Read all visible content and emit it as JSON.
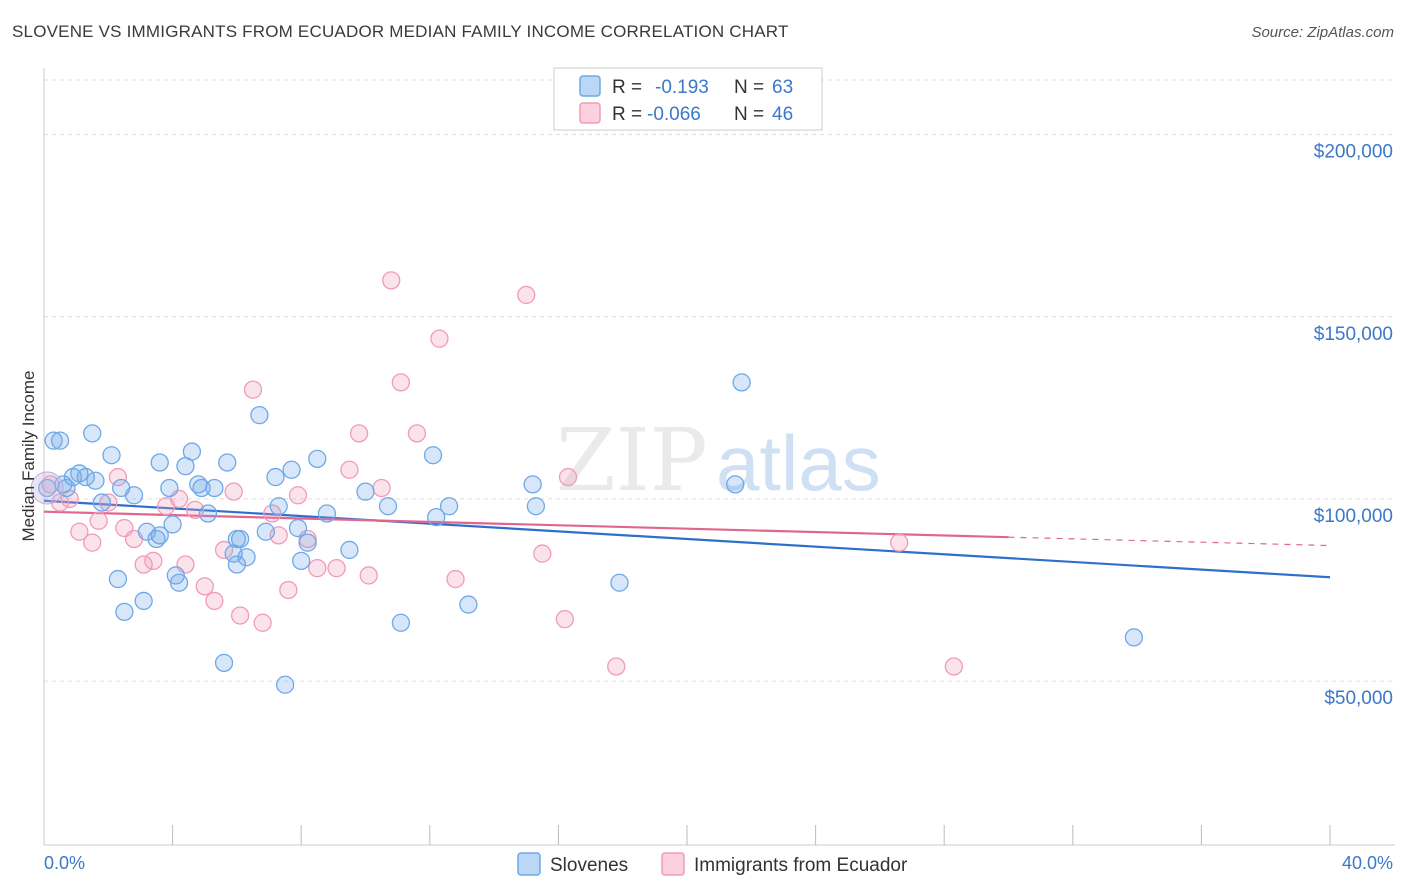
{
  "title": "SLOVENE VS IMMIGRANTS FROM ECUADOR MEDIAN FAMILY INCOME CORRELATION CHART",
  "source": "Source: ZipAtlas.com",
  "colors": {
    "blue": "#6fa8e8",
    "blue_line": "#2f6fcc",
    "pink": "#f19bb8",
    "pink_line": "#e0668f",
    "axis_text": "#3b78c9",
    "grid": "#dddddd"
  },
  "legend": {
    "rows": [
      {
        "r_label": "R =",
        "r_value": "-0.193",
        "n_label": "N =",
        "n_value": "63"
      },
      {
        "r_label": "R =",
        "r_value": "-0.066",
        "n_label": "N =",
        "n_value": "46"
      }
    ]
  },
  "watermark": {
    "zip": "ZIP",
    "atlas": "atlas"
  },
  "chart_data": {
    "type": "scatter",
    "title": "SLOVENE VS IMMIGRANTS FROM ECUADOR MEDIAN FAMILY INCOME CORRELATION CHART",
    "ylabel": "Median Family Income",
    "xlabel": "",
    "xlim": [
      0,
      40
    ],
    "ylim": [
      5000,
      215000
    ],
    "x_tick_labels": [
      "0.0%",
      "40.0%"
    ],
    "y_ticks": [
      50000,
      100000,
      150000,
      200000
    ],
    "y_tick_labels": [
      "$50,000",
      "$100,000",
      "$150,000",
      "$200,000"
    ],
    "grid": true,
    "series": [
      {
        "name": "Slovenes",
        "color": "#6fa8e8",
        "trend": {
          "x": [
            0,
            40
          ],
          "y": [
            99500,
            78500
          ]
        },
        "points": [
          [
            0.1,
            103000
          ],
          [
            0.3,
            116000
          ],
          [
            0.5,
            116000
          ],
          [
            0.6,
            104000
          ],
          [
            0.7,
            103000
          ],
          [
            0.9,
            106000
          ],
          [
            1.1,
            107000
          ],
          [
            1.3,
            106000
          ],
          [
            1.5,
            118000
          ],
          [
            1.8,
            99000
          ],
          [
            2.1,
            112000
          ],
          [
            2.4,
            103000
          ],
          [
            2.8,
            101000
          ],
          [
            3.2,
            91000
          ],
          [
            3.5,
            89000
          ],
          [
            3.6,
            90000
          ],
          [
            3.6,
            110000
          ],
          [
            3.9,
            103000
          ],
          [
            4.0,
            93000
          ],
          [
            4.1,
            79000
          ],
          [
            4.2,
            77000
          ],
          [
            4.4,
            109000
          ],
          [
            4.6,
            113000
          ],
          [
            4.8,
            104000
          ],
          [
            4.9,
            103000
          ],
          [
            5.1,
            96000
          ],
          [
            5.3,
            103000
          ],
          [
            5.6,
            55000
          ],
          [
            5.7,
            110000
          ],
          [
            5.9,
            85000
          ],
          [
            6.0,
            89000
          ],
          [
            6.1,
            89000
          ],
          [
            6.3,
            84000
          ],
          [
            6.7,
            123000
          ],
          [
            6.9,
            91000
          ],
          [
            7.2,
            106000
          ],
          [
            7.3,
            98000
          ],
          [
            7.5,
            49000
          ],
          [
            7.7,
            108000
          ],
          [
            7.9,
            92000
          ],
          [
            8.0,
            83000
          ],
          [
            8.2,
            88000
          ],
          [
            8.5,
            111000
          ],
          [
            8.8,
            96000
          ],
          [
            9.5,
            86000
          ],
          [
            10.0,
            102000
          ],
          [
            10.7,
            98000
          ],
          [
            11.1,
            66000
          ],
          [
            12.1,
            112000
          ],
          [
            12.2,
            95000
          ],
          [
            12.6,
            98000
          ],
          [
            13.2,
            71000
          ],
          [
            15.2,
            104000
          ],
          [
            15.3,
            98000
          ],
          [
            17.9,
            77000
          ],
          [
            21.7,
            132000
          ],
          [
            21.5,
            104000
          ],
          [
            33.9,
            62000
          ],
          [
            2.3,
            78000
          ],
          [
            2.5,
            69000
          ],
          [
            3.1,
            72000
          ],
          [
            1.6,
            105000
          ],
          [
            6.0,
            82000
          ]
        ]
      },
      {
        "name": "Immigrants from Ecuador",
        "color": "#f19bb8",
        "trend": {
          "x": [
            0,
            30
          ],
          "y": [
            96500,
            89500
          ]
        },
        "trend_dashed": {
          "x": [
            30,
            40
          ],
          "y": [
            89500,
            87200
          ]
        },
        "points": [
          [
            0.5,
            99000
          ],
          [
            0.8,
            100000
          ],
          [
            1.1,
            91000
          ],
          [
            1.5,
            88000
          ],
          [
            1.7,
            94000
          ],
          [
            2.0,
            99000
          ],
          [
            2.3,
            106000
          ],
          [
            2.5,
            92000
          ],
          [
            2.8,
            89000
          ],
          [
            3.1,
            82000
          ],
          [
            3.4,
            83000
          ],
          [
            3.8,
            98000
          ],
          [
            4.2,
            100000
          ],
          [
            4.4,
            82000
          ],
          [
            4.7,
            97000
          ],
          [
            5.0,
            76000
          ],
          [
            5.3,
            72000
          ],
          [
            5.6,
            86000
          ],
          [
            5.9,
            102000
          ],
          [
            6.1,
            68000
          ],
          [
            6.5,
            130000
          ],
          [
            6.8,
            66000
          ],
          [
            7.1,
            96000
          ],
          [
            7.3,
            90000
          ],
          [
            7.6,
            75000
          ],
          [
            7.9,
            101000
          ],
          [
            8.2,
            89000
          ],
          [
            8.5,
            81000
          ],
          [
            9.1,
            81000
          ],
          [
            9.5,
            108000
          ],
          [
            9.8,
            118000
          ],
          [
            10.1,
            79000
          ],
          [
            10.5,
            103000
          ],
          [
            10.8,
            160000
          ],
          [
            11.1,
            132000
          ],
          [
            11.6,
            118000
          ],
          [
            12.3,
            144000
          ],
          [
            12.8,
            78000
          ],
          [
            15.0,
            156000
          ],
          [
            15.5,
            85000
          ],
          [
            16.2,
            67000
          ],
          [
            16.3,
            106000
          ],
          [
            17.8,
            54000
          ],
          [
            26.6,
            88000
          ],
          [
            28.3,
            54000
          ],
          [
            0.2,
            104000
          ]
        ]
      }
    ]
  },
  "bottom_legend": [
    "Slovenes",
    "Immigrants from Ecuador"
  ]
}
